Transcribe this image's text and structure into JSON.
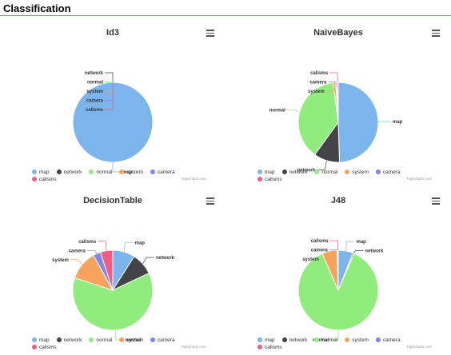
{
  "page": {
    "title": "Classification",
    "rule_color": "#c86dd7"
  },
  "colors": {
    "map": "#7cb5ec",
    "network": "#434348",
    "normal": "#90ed7d",
    "system": "#f7a35c",
    "camera": "#8085e9",
    "callsms": "#f15c80"
  },
  "legend_labels": [
    "map",
    "network",
    "normal",
    "system",
    "camera",
    "callsms"
  ],
  "credit_text": "Highcharts.com",
  "menu_icon": "hamburger-menu-icon",
  "chart_data": [
    {
      "type": "pie",
      "title": "Id3",
      "slices": [
        {
          "name": "map",
          "value": 100
        },
        {
          "name": "network",
          "value": 0
        },
        {
          "name": "normal",
          "value": 0
        },
        {
          "name": "system",
          "value": 0
        },
        {
          "name": "camera",
          "value": 0
        },
        {
          "name": "callsms",
          "value": 0
        }
      ]
    },
    {
      "type": "pie",
      "title": "NaiveBayes",
      "slices": [
        {
          "name": "map",
          "value": 49.5
        },
        {
          "name": "network",
          "value": 10.5
        },
        {
          "name": "normal",
          "value": 38
        },
        {
          "name": "system",
          "value": 1
        },
        {
          "name": "camera",
          "value": 0.5
        },
        {
          "name": "callsms",
          "value": 0.5
        }
      ]
    },
    {
      "type": "pie",
      "title": "DecisionTable",
      "slices": [
        {
          "name": "map",
          "value": 9
        },
        {
          "name": "network",
          "value": 9
        },
        {
          "name": "normal",
          "value": 62
        },
        {
          "name": "system",
          "value": 12
        },
        {
          "name": "camera",
          "value": 3
        },
        {
          "name": "callsms",
          "value": 5
        }
      ]
    },
    {
      "type": "pie",
      "title": "J48",
      "slices": [
        {
          "name": "map",
          "value": 6
        },
        {
          "name": "network",
          "value": 0.5
        },
        {
          "name": "normal",
          "value": 87
        },
        {
          "name": "system",
          "value": 6
        },
        {
          "name": "camera",
          "value": 0.3
        },
        {
          "name": "callsms",
          "value": 0.2
        }
      ]
    }
  ]
}
